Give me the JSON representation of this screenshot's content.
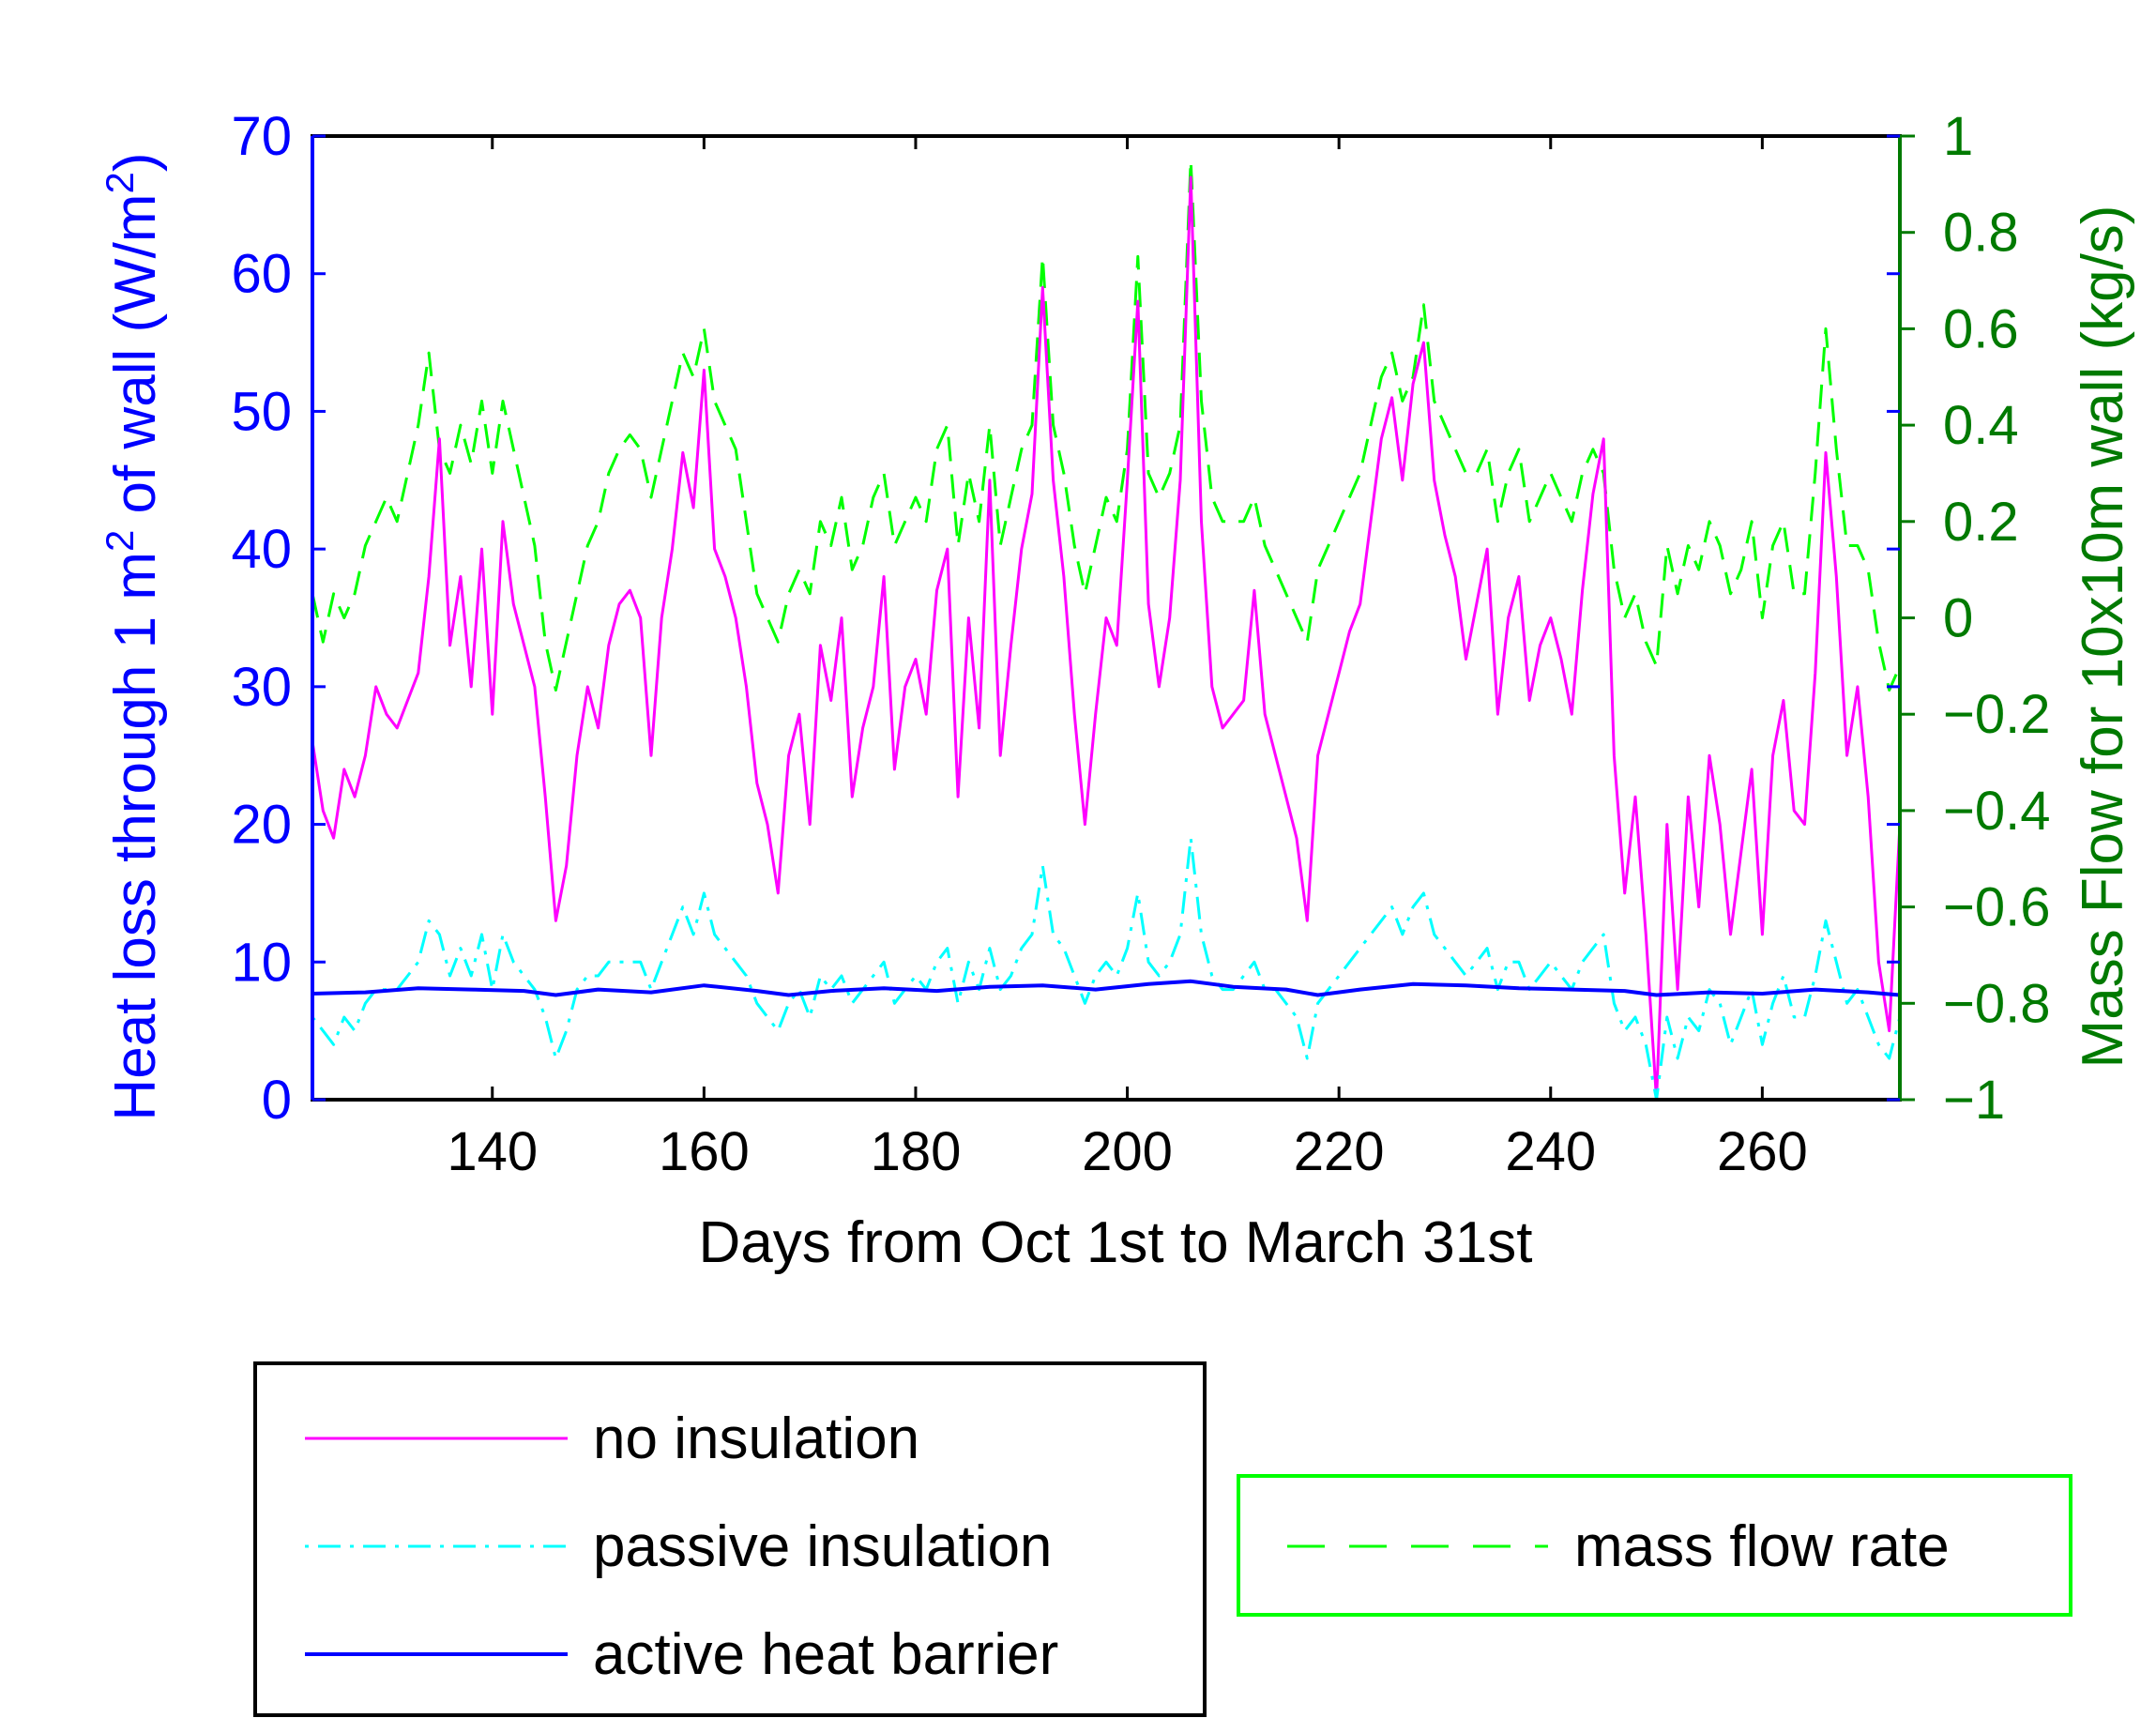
{
  "chart_data": {
    "type": "line",
    "xlabel": "Days from Oct 1st to March 31st",
    "ylabel_left": {
      "main": "Heat loss through 1 m",
      "sup": "2",
      "mid": " of wall (W/m",
      "sup2": "2",
      "end": ")"
    },
    "ylabel_right": "Mass Flow for 10x10m wall (kg/s)",
    "xlim": [
      123,
      273
    ],
    "ylim_left": [
      0,
      70
    ],
    "ylim_right": [
      -1,
      1
    ],
    "xticks": [
      140,
      160,
      180,
      200,
      220,
      240,
      260
    ],
    "yticks_left": [
      0,
      10,
      20,
      30,
      40,
      50,
      60,
      70
    ],
    "yticks_right": [
      -1,
      -0.8,
      -0.6,
      -0.4,
      -0.2,
      0,
      0.2,
      0.4,
      0.6,
      0.8,
      1
    ],
    "ytick_labels_right": [
      "−1",
      "−0.8",
      "−0.6",
      "−0.4",
      "−0.2",
      "0",
      "0.2",
      "0.4",
      "0.6",
      "0.8",
      "1"
    ],
    "colors": {
      "no_insulation": "#ff00ff",
      "passive_insulation": "#00ffff",
      "active_heat_barrier": "#0000ff",
      "mass_flow": "#00ff00"
    },
    "legend": {
      "no_insulation": "no insulation",
      "passive_insulation": "passive insulation",
      "active_heat_barrier": "active heat barrier",
      "mass_flow": "mass flow rate"
    },
    "series": [
      {
        "name": "no insulation",
        "axis": "left",
        "x": [
          123,
          124,
          125,
          126,
          127,
          128,
          129,
          130,
          131,
          132,
          133,
          134,
          135,
          136,
          137,
          138,
          139,
          140,
          141,
          142,
          143,
          144,
          145,
          146,
          147,
          148,
          149,
          150,
          151,
          152,
          153,
          154,
          155,
          156,
          157,
          158,
          159,
          160,
          161,
          162,
          163,
          164,
          165,
          166,
          167,
          168,
          169,
          170,
          171,
          172,
          173,
          174,
          175,
          176,
          177,
          178,
          179,
          180,
          181,
          182,
          183,
          184,
          185,
          186,
          187,
          188,
          189,
          190,
          191,
          192,
          193,
          194,
          195,
          196,
          197,
          198,
          199,
          200,
          201,
          202,
          203,
          204,
          205,
          206,
          207,
          208,
          209,
          210,
          211,
          212,
          213,
          214,
          215,
          216,
          217,
          218,
          219,
          220,
          221,
          222,
          223,
          224,
          225,
          226,
          227,
          228,
          229,
          230,
          231,
          232,
          233,
          234,
          235,
          236,
          237,
          238,
          239,
          240,
          241,
          242,
          243,
          244,
          245,
          246,
          247,
          248,
          249,
          250,
          251,
          252,
          253,
          254,
          255,
          256,
          257,
          258,
          259,
          260,
          261,
          262,
          263,
          264,
          265,
          266,
          267,
          268,
          269,
          270,
          271,
          272,
          273
        ],
        "y": [
          26,
          21,
          19,
          24,
          22,
          25,
          30,
          28,
          27,
          29,
          31,
          38,
          48,
          33,
          38,
          30,
          40,
          28,
          42,
          36,
          33,
          30,
          22,
          13,
          17,
          25,
          30,
          27,
          33,
          36,
          37,
          35,
          25,
          35,
          40,
          47,
          43,
          53,
          40,
          38,
          35,
          30,
          23,
          20,
          15,
          25,
          28,
          20,
          33,
          29,
          35,
          22,
          27,
          30,
          38,
          24,
          30,
          32,
          28,
          37,
          40,
          22,
          35,
          27,
          45,
          25,
          33,
          40,
          44,
          59,
          45,
          38,
          28,
          20,
          28,
          35,
          33,
          45,
          58,
          36,
          30,
          35,
          45,
          67,
          42,
          30,
          27,
          28,
          29,
          37,
          28,
          25,
          22,
          19,
          13,
          25,
          28,
          31,
          34,
          36,
          42,
          48,
          51,
          45,
          52,
          55,
          45,
          41,
          38,
          32,
          36,
          40,
          28,
          35,
          38,
          29,
          33,
          35,
          32,
          28,
          37,
          44,
          48,
          25,
          15,
          22,
          12,
          0,
          20,
          8,
          22,
          14,
          25,
          20,
          12,
          18,
          24,
          12,
          25,
          29,
          21,
          20,
          31,
          47,
          38,
          25,
          30,
          22,
          10,
          5,
          20
        ]
      },
      {
        "name": "passive insulation",
        "axis": "left",
        "x": [
          123,
          124,
          125,
          126,
          127,
          128,
          129,
          130,
          131,
          132,
          133,
          134,
          135,
          136,
          137,
          138,
          139,
          140,
          141,
          142,
          143,
          144,
          145,
          146,
          147,
          148,
          149,
          150,
          151,
          152,
          153,
          154,
          155,
          156,
          157,
          158,
          159,
          160,
          161,
          162,
          163,
          164,
          165,
          166,
          167,
          168,
          169,
          170,
          171,
          172,
          173,
          174,
          175,
          176,
          177,
          178,
          179,
          180,
          181,
          182,
          183,
          184,
          185,
          186,
          187,
          188,
          189,
          190,
          191,
          192,
          193,
          194,
          195,
          196,
          197,
          198,
          199,
          200,
          201,
          202,
          203,
          204,
          205,
          206,
          207,
          208,
          209,
          210,
          211,
          212,
          213,
          214,
          215,
          216,
          217,
          218,
          219,
          220,
          221,
          222,
          223,
          224,
          225,
          226,
          227,
          228,
          229,
          230,
          231,
          232,
          233,
          234,
          235,
          236,
          237,
          238,
          239,
          240,
          241,
          242,
          243,
          244,
          245,
          246,
          247,
          248,
          249,
          250,
          251,
          252,
          253,
          254,
          255,
          256,
          257,
          258,
          259,
          260,
          261,
          262,
          263,
          264,
          265,
          266,
          267,
          268,
          269,
          270,
          271,
          272,
          273
        ],
        "y": [
          6,
          5,
          4,
          6,
          5,
          7,
          8,
          8,
          8,
          9,
          10,
          13,
          12,
          9,
          11,
          9,
          12,
          8,
          12,
          10,
          9,
          8,
          6,
          3,
          5,
          8,
          9,
          9,
          10,
          10,
          10,
          10,
          8,
          10,
          12,
          14,
          12,
          15,
          12,
          11,
          10,
          9,
          7,
          6,
          5,
          7,
          8,
          6,
          9,
          8,
          9,
          7,
          8,
          9,
          10,
          7,
          8,
          9,
          8,
          10,
          11,
          7,
          10,
          8,
          11,
          8,
          9,
          11,
          12,
          17,
          12,
          11,
          9,
          7,
          9,
          10,
          9,
          11,
          15,
          10,
          9,
          10,
          12,
          19,
          12,
          9,
          8,
          8,
          9,
          10,
          8,
          8,
          7,
          6,
          3,
          7,
          8,
          9,
          10,
          11,
          12,
          13,
          14,
          12,
          14,
          15,
          12,
          11,
          10,
          9,
          10,
          11,
          8,
          10,
          10,
          8,
          9,
          10,
          9,
          8,
          10,
          11,
          12,
          7,
          5,
          6,
          4,
          0,
          6,
          3,
          6,
          5,
          8,
          7,
          4,
          6,
          8,
          4,
          7,
          9,
          6,
          6,
          9,
          13,
          10,
          7,
          8,
          6,
          4,
          3,
          6
        ]
      },
      {
        "name": "active heat barrier",
        "axis": "left",
        "x": [
          123,
          128,
          133,
          138,
          143,
          146,
          150,
          155,
          160,
          165,
          168,
          172,
          177,
          182,
          187,
          192,
          197,
          202,
          206,
          210,
          215,
          218,
          222,
          227,
          232,
          237,
          242,
          247,
          250,
          255,
          260,
          265,
          270,
          273
        ],
        "y": [
          7.7,
          7.8,
          8.1,
          8.0,
          7.9,
          7.6,
          8.0,
          7.8,
          8.3,
          7.9,
          7.6,
          7.9,
          8.1,
          7.9,
          8.2,
          8.3,
          8.0,
          8.4,
          8.6,
          8.2,
          8.0,
          7.6,
          8.0,
          8.4,
          8.3,
          8.1,
          8.0,
          7.9,
          7.6,
          7.8,
          7.7,
          8.0,
          7.8,
          7.6
        ]
      },
      {
        "name": "mass flow rate",
        "axis": "right",
        "x": [
          123,
          124,
          125,
          126,
          127,
          128,
          129,
          130,
          131,
          132,
          133,
          134,
          135,
          136,
          137,
          138,
          139,
          140,
          141,
          142,
          143,
          144,
          145,
          146,
          147,
          148,
          149,
          150,
          151,
          152,
          153,
          154,
          155,
          156,
          157,
          158,
          159,
          160,
          161,
          162,
          163,
          164,
          165,
          166,
          167,
          168,
          169,
          170,
          171,
          172,
          173,
          174,
          175,
          176,
          177,
          178,
          179,
          180,
          181,
          182,
          183,
          184,
          185,
          186,
          187,
          188,
          189,
          190,
          191,
          192,
          193,
          194,
          195,
          196,
          197,
          198,
          199,
          200,
          201,
          202,
          203,
          204,
          205,
          206,
          207,
          208,
          209,
          210,
          211,
          212,
          213,
          214,
          215,
          216,
          217,
          218,
          219,
          220,
          221,
          222,
          223,
          224,
          225,
          226,
          227,
          228,
          229,
          230,
          231,
          232,
          233,
          234,
          235,
          236,
          237,
          238,
          239,
          240,
          241,
          242,
          243,
          244,
          245,
          246,
          247,
          248,
          249,
          250,
          251,
          252,
          253,
          254,
          255,
          256,
          257,
          258,
          259,
          260,
          261,
          262,
          263,
          264,
          265,
          266,
          267,
          268,
          269,
          270,
          271,
          272,
          273
        ],
        "y": [
          0.05,
          -0.05,
          0.05,
          0.0,
          0.05,
          0.15,
          0.2,
          0.25,
          0.2,
          0.3,
          0.4,
          0.55,
          0.35,
          0.3,
          0.4,
          0.32,
          0.45,
          0.3,
          0.45,
          0.35,
          0.25,
          0.15,
          -0.05,
          -0.15,
          -0.05,
          0.05,
          0.15,
          0.2,
          0.3,
          0.35,
          0.38,
          0.35,
          0.25,
          0.35,
          0.45,
          0.55,
          0.5,
          0.6,
          0.45,
          0.4,
          0.35,
          0.2,
          0.05,
          0.0,
          -0.05,
          0.05,
          0.1,
          0.05,
          0.2,
          0.15,
          0.25,
          0.1,
          0.15,
          0.25,
          0.3,
          0.15,
          0.2,
          0.25,
          0.2,
          0.35,
          0.4,
          0.15,
          0.3,
          0.2,
          0.4,
          0.15,
          0.25,
          0.35,
          0.4,
          0.75,
          0.4,
          0.3,
          0.15,
          0.05,
          0.15,
          0.25,
          0.2,
          0.35,
          0.75,
          0.3,
          0.25,
          0.3,
          0.4,
          0.95,
          0.45,
          0.25,
          0.2,
          0.2,
          0.2,
          0.25,
          0.15,
          0.1,
          0.05,
          0.0,
          -0.05,
          0.1,
          0.15,
          0.2,
          0.25,
          0.3,
          0.4,
          0.5,
          0.55,
          0.45,
          0.5,
          0.65,
          0.45,
          0.4,
          0.35,
          0.3,
          0.3,
          0.35,
          0.2,
          0.3,
          0.35,
          0.2,
          0.25,
          0.3,
          0.25,
          0.2,
          0.3,
          0.35,
          0.3,
          0.1,
          0.0,
          0.05,
          -0.05,
          -0.1,
          0.15,
          0.05,
          0.15,
          0.1,
          0.2,
          0.15,
          0.05,
          0.1,
          0.2,
          0.0,
          0.15,
          0.2,
          0.05,
          0.05,
          0.3,
          0.6,
          0.35,
          0.15,
          0.15,
          0.1,
          -0.05,
          -0.15,
          -0.1
        ]
      }
    ]
  }
}
